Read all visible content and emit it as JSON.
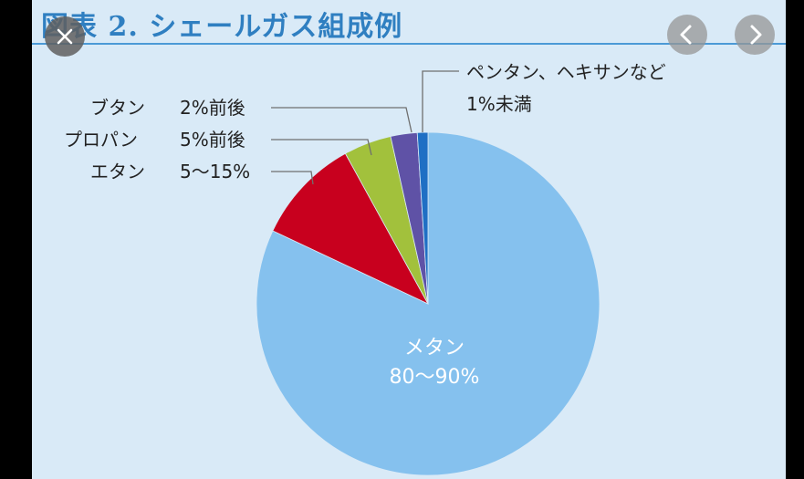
{
  "viewer": {
    "close_icon": "close-icon",
    "prev_icon": "chevron-left-icon",
    "next_icon": "chevron-right-icon",
    "background": "#000000"
  },
  "figure": {
    "title": "図表 2. シェールガス組成例",
    "title_color": "#2f7fc1",
    "background": "#d9eaf7"
  },
  "chart_data": {
    "type": "pie",
    "title": "図表 2. シェールガス組成例",
    "start": "12 o'clock, clockwise",
    "slices": [
      {
        "name": "メタン",
        "value_text": "80〜90%",
        "value": 82,
        "color": "#85c1ee",
        "label_position": "inside"
      },
      {
        "name": "エタン",
        "value_text": "5〜15%",
        "value": 10,
        "color": "#c8001e",
        "label_position": "left"
      },
      {
        "name": "プロパン",
        "value_text": "5%前後",
        "value": 4.5,
        "color": "#a2c13c",
        "label_position": "left"
      },
      {
        "name": "ブタン",
        "value_text": "2%前後",
        "value": 2.5,
        "color": "#5f52a6",
        "label_position": "left"
      },
      {
        "name": "ペンタン、ヘキサンなど",
        "value_text": "1%未満",
        "value": 1,
        "color": "#1f6fc4",
        "label_position": "top-right"
      }
    ],
    "grid": false,
    "legend": "none"
  }
}
